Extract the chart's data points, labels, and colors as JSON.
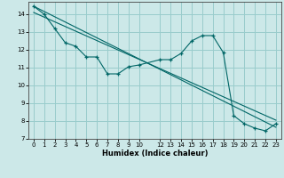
{
  "xlabel": "Humidex (Indice chaleur)",
  "bg_color": "#cce8e8",
  "grid_color": "#99cccc",
  "line_color": "#006666",
  "xlim": [
    -0.5,
    23.5
  ],
  "ylim": [
    7.0,
    14.7
  ],
  "xticks": [
    0,
    1,
    2,
    3,
    4,
    5,
    6,
    7,
    8,
    9,
    10,
    12,
    13,
    14,
    15,
    16,
    17,
    18,
    19,
    20,
    21,
    22,
    23
  ],
  "yticks": [
    7,
    8,
    9,
    10,
    11,
    12,
    13,
    14
  ],
  "series_x": [
    0,
    1,
    2,
    3,
    4,
    5,
    6,
    7,
    8,
    9,
    10,
    12,
    13,
    14,
    15,
    16,
    17,
    18,
    19,
    20,
    21,
    22,
    23
  ],
  "series_y": [
    14.45,
    14.0,
    13.2,
    12.4,
    12.2,
    11.6,
    11.6,
    10.65,
    10.65,
    11.05,
    11.15,
    11.45,
    11.45,
    11.8,
    12.5,
    12.8,
    12.8,
    11.85,
    8.3,
    7.85,
    7.6,
    7.45,
    7.85
  ],
  "trend1_x": [
    0,
    23
  ],
  "trend1_y": [
    14.45,
    7.65
  ],
  "trend2_x": [
    0,
    23
  ],
  "trend2_y": [
    14.1,
    8.05
  ]
}
